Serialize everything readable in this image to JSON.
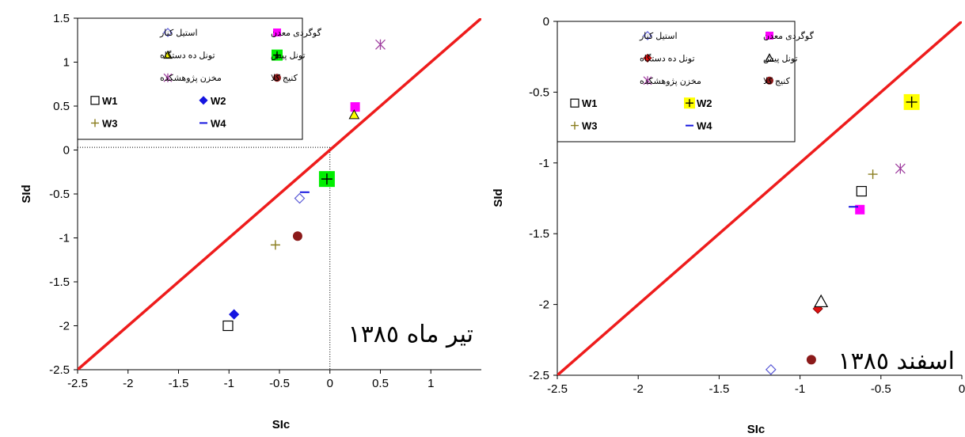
{
  "chart_data": [
    {
      "type": "scatter",
      "annotation": "تیر ماه ١٣٨٥",
      "xlabel": "SIc",
      "ylabel": "SId",
      "xlim": [
        -2.5,
        1.5
      ],
      "ylim": [
        -2.5,
        1.5
      ],
      "xticks": [
        "-2.5",
        "-2",
        "-1.5",
        "-1",
        "-0.5",
        "0",
        "0.5",
        "1"
      ],
      "yticks": [
        "1.5",
        "1",
        "0.5",
        "0",
        "-0.5",
        "-1",
        "-1.5",
        "-2",
        "-2.5"
      ],
      "xtick_values": [
        -2.5,
        -2,
        -1.5,
        -1,
        -0.5,
        0,
        0.5,
        1
      ],
      "ytick_values": [
        1.5,
        1,
        0.5,
        0,
        -0.5,
        -1,
        -1.5,
        -2,
        -2.5
      ],
      "reference_line": {
        "from": [
          -2.5,
          -2.5
        ],
        "to": [
          1.5,
          1.5
        ],
        "color": "#ee1c1c"
      },
      "guide_lines": {
        "x": 0,
        "y": 0.03,
        "style": "dotted"
      },
      "legend_position": "top-left",
      "series": [
        {
          "name": "استیل کنار",
          "marker": "diamond-open",
          "color": "#5b5bd6",
          "x": -0.3,
          "y": -0.55
        },
        {
          "name": "گوگردی معدن",
          "marker": "square",
          "color": "#ff00ff",
          "x": 0.25,
          "y": 0.49
        },
        {
          "name": "تونل ده دستگاه",
          "marker": "triangle",
          "color": "#ffff00",
          "x": 0.24,
          "y": 0.4
        },
        {
          "name": "تونل پیش",
          "marker": "square-plus",
          "color": "#00ee00",
          "x": -0.03,
          "y": -0.33
        },
        {
          "name": "مخزن پژوهشکده",
          "marker": "asterisk",
          "color": "#a040a0",
          "x": 0.5,
          "y": 1.2
        },
        {
          "name": "کنیج کلا",
          "marker": "circle",
          "color": "#8b1a1a",
          "x": -0.32,
          "y": -0.98
        },
        {
          "name": "W1",
          "marker": "square-open",
          "color": "#000000",
          "x": -1.01,
          "y": -2.0
        },
        {
          "name": "W2",
          "marker": "diamond",
          "color": "#1515e0",
          "x": -0.95,
          "y": -1.87
        },
        {
          "name": "W3",
          "marker": "plus",
          "color": "#8a7d1e",
          "x": -0.54,
          "y": -1.08
        },
        {
          "name": "W4",
          "marker": "dash",
          "color": "#1515e0",
          "x": -0.25,
          "y": -0.48
        }
      ]
    },
    {
      "type": "scatter",
      "annotation": "اسفند ١٣٨٥",
      "xlabel": "SIc",
      "ylabel": "SId",
      "xlim": [
        -2.5,
        0
      ],
      "ylim": [
        -2.5,
        0
      ],
      "xticks": [
        "-2.5",
        "-2",
        "-1.5",
        "-1",
        "-0.5",
        "0"
      ],
      "yticks": [
        "0",
        "-0.5",
        "-1",
        "-1.5",
        "-2",
        "-2.5"
      ],
      "xtick_values": [
        -2.5,
        -2,
        -1.5,
        -1,
        -0.5,
        0
      ],
      "ytick_values": [
        0,
        -0.5,
        -1,
        -1.5,
        -2,
        -2.5
      ],
      "reference_line": {
        "from": [
          -2.5,
          -2.5
        ],
        "to": [
          0,
          0
        ],
        "color": "#ee1c1c"
      },
      "legend_position": "top-left",
      "series": [
        {
          "name": "استیل کنار",
          "marker": "diamond-open",
          "color": "#5b5bd6",
          "x": -1.18,
          "y": -2.46
        },
        {
          "name": "گوگردی معدن",
          "marker": "square",
          "color": "#ff00ff",
          "x": -0.63,
          "y": -1.33
        },
        {
          "name": "تونل ده دستگاه",
          "marker": "diamond",
          "color": "#dd1111",
          "x": -0.89,
          "y": -2.03
        },
        {
          "name": "تونل پیش",
          "marker": "triangle-open",
          "color": "#000000",
          "x": -0.87,
          "y": -1.98
        },
        {
          "name": "مخزن پژوهشکده",
          "marker": "asterisk",
          "color": "#a040a0",
          "x": -0.38,
          "y": -1.04
        },
        {
          "name": "کنیج کلا",
          "marker": "circle",
          "color": "#8b1a1a",
          "x": -0.93,
          "y": -2.39
        },
        {
          "name": "W1",
          "marker": "square-open",
          "color": "#000000",
          "x": -0.62,
          "y": -1.2
        },
        {
          "name": "W2",
          "marker": "square-plus",
          "color": "#ffff00",
          "x": -0.31,
          "y": -0.57
        },
        {
          "name": "W3",
          "marker": "plus",
          "color": "#8a7d1e",
          "x": -0.55,
          "y": -1.08
        },
        {
          "name": "W4",
          "marker": "dash",
          "color": "#1515e0",
          "x": -0.67,
          "y": -1.31
        }
      ]
    }
  ]
}
